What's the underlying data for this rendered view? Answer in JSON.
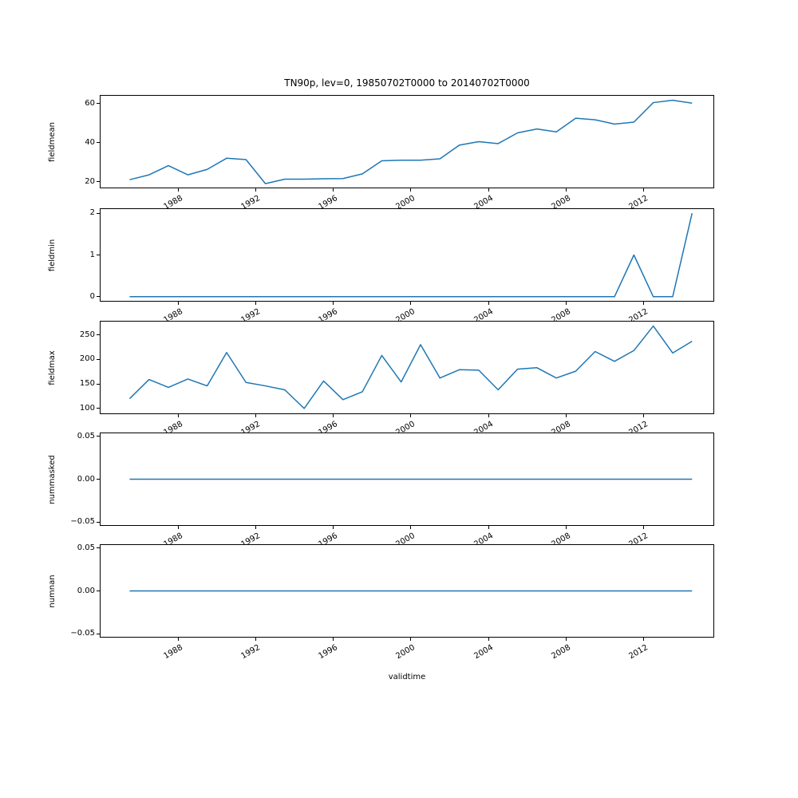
{
  "figure": {
    "title": "TN90p, lev=0, 19850702T0000 to 20140702T0000",
    "xlabel": "validtime",
    "line_color": "#1f77b4",
    "background": "#ffffff",
    "text_color": "#000000"
  },
  "chart_data": {
    "type": "line",
    "title": "TN90p, lev=0, 19850702T0000 to 20140702T0000",
    "xlabel": "validtime",
    "grid": false,
    "legend": "none",
    "xtick_rotation_deg": 30,
    "x": [
      1985.5,
      1986.5,
      1987.5,
      1988.5,
      1989.5,
      1990.5,
      1991.5,
      1992.5,
      1993.5,
      1994.5,
      1995.5,
      1996.5,
      1997.5,
      1998.5,
      1999.5,
      2000.5,
      2001.5,
      2002.5,
      2003.5,
      2004.5,
      2005.5,
      2006.5,
      2007.5,
      2008.5,
      2009.5,
      2010.5,
      2011.5,
      2012.5,
      2013.5,
      2014.5
    ],
    "xlim": [
      1984.0,
      2015.6
    ],
    "xticks": [
      1988,
      1992,
      1996,
      2000,
      2004,
      2008,
      2012
    ],
    "xtick_labels": [
      "1988",
      "1992",
      "1996",
      "2000",
      "2004",
      "2008",
      "2012"
    ],
    "subplots": [
      {
        "ylabel": "fieldmean",
        "values": [
          21.0,
          23.5,
          28.2,
          23.5,
          26.3,
          32.0,
          31.3,
          19.0,
          21.3,
          21.3,
          21.5,
          21.6,
          24.0,
          30.7,
          31.0,
          31.0,
          31.7,
          38.7,
          40.5,
          39.5,
          45.0,
          47.0,
          45.5,
          52.5,
          51.7,
          49.5,
          50.5,
          60.5,
          61.7,
          60.2
        ],
        "ylim": [
          17.0,
          64.0
        ],
        "yticks": [
          20,
          40,
          60
        ],
        "ytick_labels": [
          "20",
          "40",
          "60"
        ]
      },
      {
        "ylabel": "fieldmin",
        "values": [
          0,
          0,
          0,
          0,
          0,
          0,
          0,
          0,
          0,
          0,
          0,
          0,
          0,
          0,
          0,
          0,
          0,
          0,
          0,
          0,
          0,
          0,
          0,
          0,
          0,
          0,
          1,
          0,
          0,
          2
        ],
        "ylim": [
          -0.1,
          2.1
        ],
        "yticks": [
          0,
          1,
          2
        ],
        "ytick_labels": [
          "0",
          "1",
          "2"
        ]
      },
      {
        "ylabel": "fieldmax",
        "values": [
          120,
          159,
          143,
          160,
          146,
          214,
          153,
          146,
          138,
          100,
          156,
          118,
          134,
          208,
          154,
          230,
          162,
          179,
          178,
          138,
          180,
          183,
          162,
          176,
          216,
          196,
          218,
          268,
          213,
          237
        ],
        "ylim": [
          90,
          277
        ],
        "yticks": [
          100,
          150,
          200,
          250
        ],
        "ytick_labels": [
          "100",
          "150",
          "200",
          "250"
        ]
      },
      {
        "ylabel": "nummasked",
        "values": [
          0,
          0,
          0,
          0,
          0,
          0,
          0,
          0,
          0,
          0,
          0,
          0,
          0,
          0,
          0,
          0,
          0,
          0,
          0,
          0,
          0,
          0,
          0,
          0,
          0,
          0,
          0,
          0,
          0,
          0
        ],
        "ylim": [
          -0.0535,
          0.0535
        ],
        "yticks": [
          0.05,
          0.0,
          -0.05
        ],
        "ytick_labels": [
          "0.05",
          "0.00",
          "−0.05"
        ]
      },
      {
        "ylabel": "numnan",
        "values": [
          0,
          0,
          0,
          0,
          0,
          0,
          0,
          0,
          0,
          0,
          0,
          0,
          0,
          0,
          0,
          0,
          0,
          0,
          0,
          0,
          0,
          0,
          0,
          0,
          0,
          0,
          0,
          0,
          0,
          0
        ],
        "ylim": [
          -0.0535,
          0.0535
        ],
        "yticks": [
          0.05,
          0.0,
          -0.05
        ],
        "ytick_labels": [
          "0.05",
          "0.00",
          "−0.05"
        ]
      }
    ]
  }
}
